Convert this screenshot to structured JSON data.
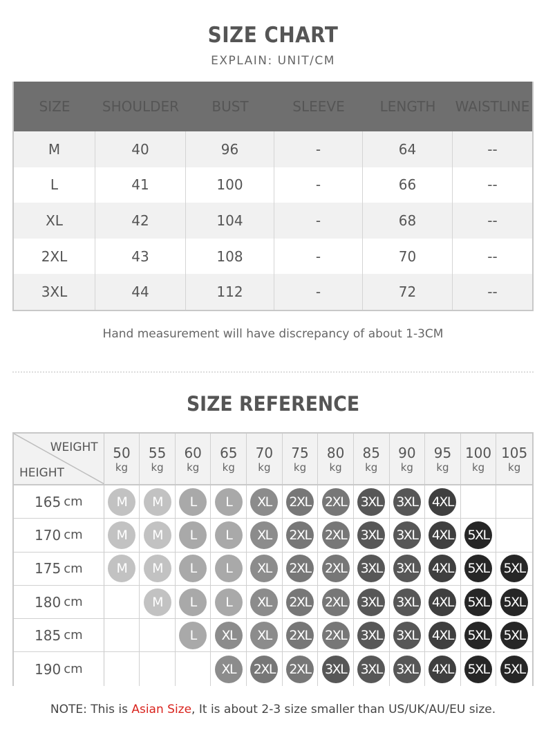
{
  "size_chart": {
    "title": "SIZE CHART",
    "subtitle": "EXPLAIN: UNIT/CM",
    "columns": [
      "SIZE",
      "SHOULDER",
      "BUST",
      "SLEEVE",
      "LENGTH",
      "WAISTLINE"
    ],
    "rows": [
      [
        "M",
        "40",
        "96",
        "-",
        "64",
        "--"
      ],
      [
        "L",
        "41",
        "100",
        "-",
        "66",
        "--"
      ],
      [
        "XL",
        "42",
        "104",
        "-",
        "68",
        "--"
      ],
      [
        "2XL",
        "43",
        "108",
        "-",
        "70",
        "--"
      ],
      [
        "3XL",
        "44",
        "112",
        "-",
        "72",
        "--"
      ]
    ],
    "note": "Hand measurement will have discrepancy of about 1-3CM"
  },
  "size_reference": {
    "title": "SIZE REFERENCE",
    "weight_label": "WEIGHT",
    "height_label": "HEIGHT",
    "weight_unit": "kg",
    "height_unit": "cm",
    "weights": [
      "50",
      "55",
      "60",
      "65",
      "70",
      "75",
      "80",
      "85",
      "90",
      "95",
      "100",
      "105"
    ],
    "rows": [
      {
        "height": "165",
        "sizes": [
          "M",
          "M",
          "L",
          "L",
          "XL",
          "2XL",
          "2XL",
          "3XL",
          "3XL",
          "4XL",
          "",
          ""
        ]
      },
      {
        "height": "170",
        "sizes": [
          "M",
          "M",
          "L",
          "L",
          "XL",
          "2XL",
          "2XL",
          "3XL",
          "3XL",
          "4XL",
          "5XL",
          ""
        ]
      },
      {
        "height": "175",
        "sizes": [
          "M",
          "M",
          "L",
          "L",
          "XL",
          "2XL",
          "2XL",
          "3XL",
          "3XL",
          "4XL",
          "5XL",
          "5XL"
        ]
      },
      {
        "height": "180",
        "sizes": [
          "",
          "M",
          "L",
          "L",
          "XL",
          "2XL",
          "2XL",
          "3XL",
          "3XL",
          "4XL",
          "5XL",
          "5XL"
        ]
      },
      {
        "height": "185",
        "sizes": [
          "",
          "",
          "L",
          "XL",
          "XL",
          "2XL",
          "2XL",
          "3XL",
          "3XL",
          "4XL",
          "5XL",
          "5XL"
        ]
      },
      {
        "height": "190",
        "sizes": [
          "",
          "",
          "",
          "XL",
          "2XL",
          "2XL",
          "3XL",
          "3XL",
          "3XL",
          "4XL",
          "5XL",
          "5XL"
        ]
      }
    ]
  },
  "footer_note": {
    "prefix": "NOTE: This is ",
    "highlight": "Asian Size",
    "suffix": ", It is about 2-3 size smaller than US/UK/AU/EU size.",
    "highlight_color": "#d9231d"
  }
}
